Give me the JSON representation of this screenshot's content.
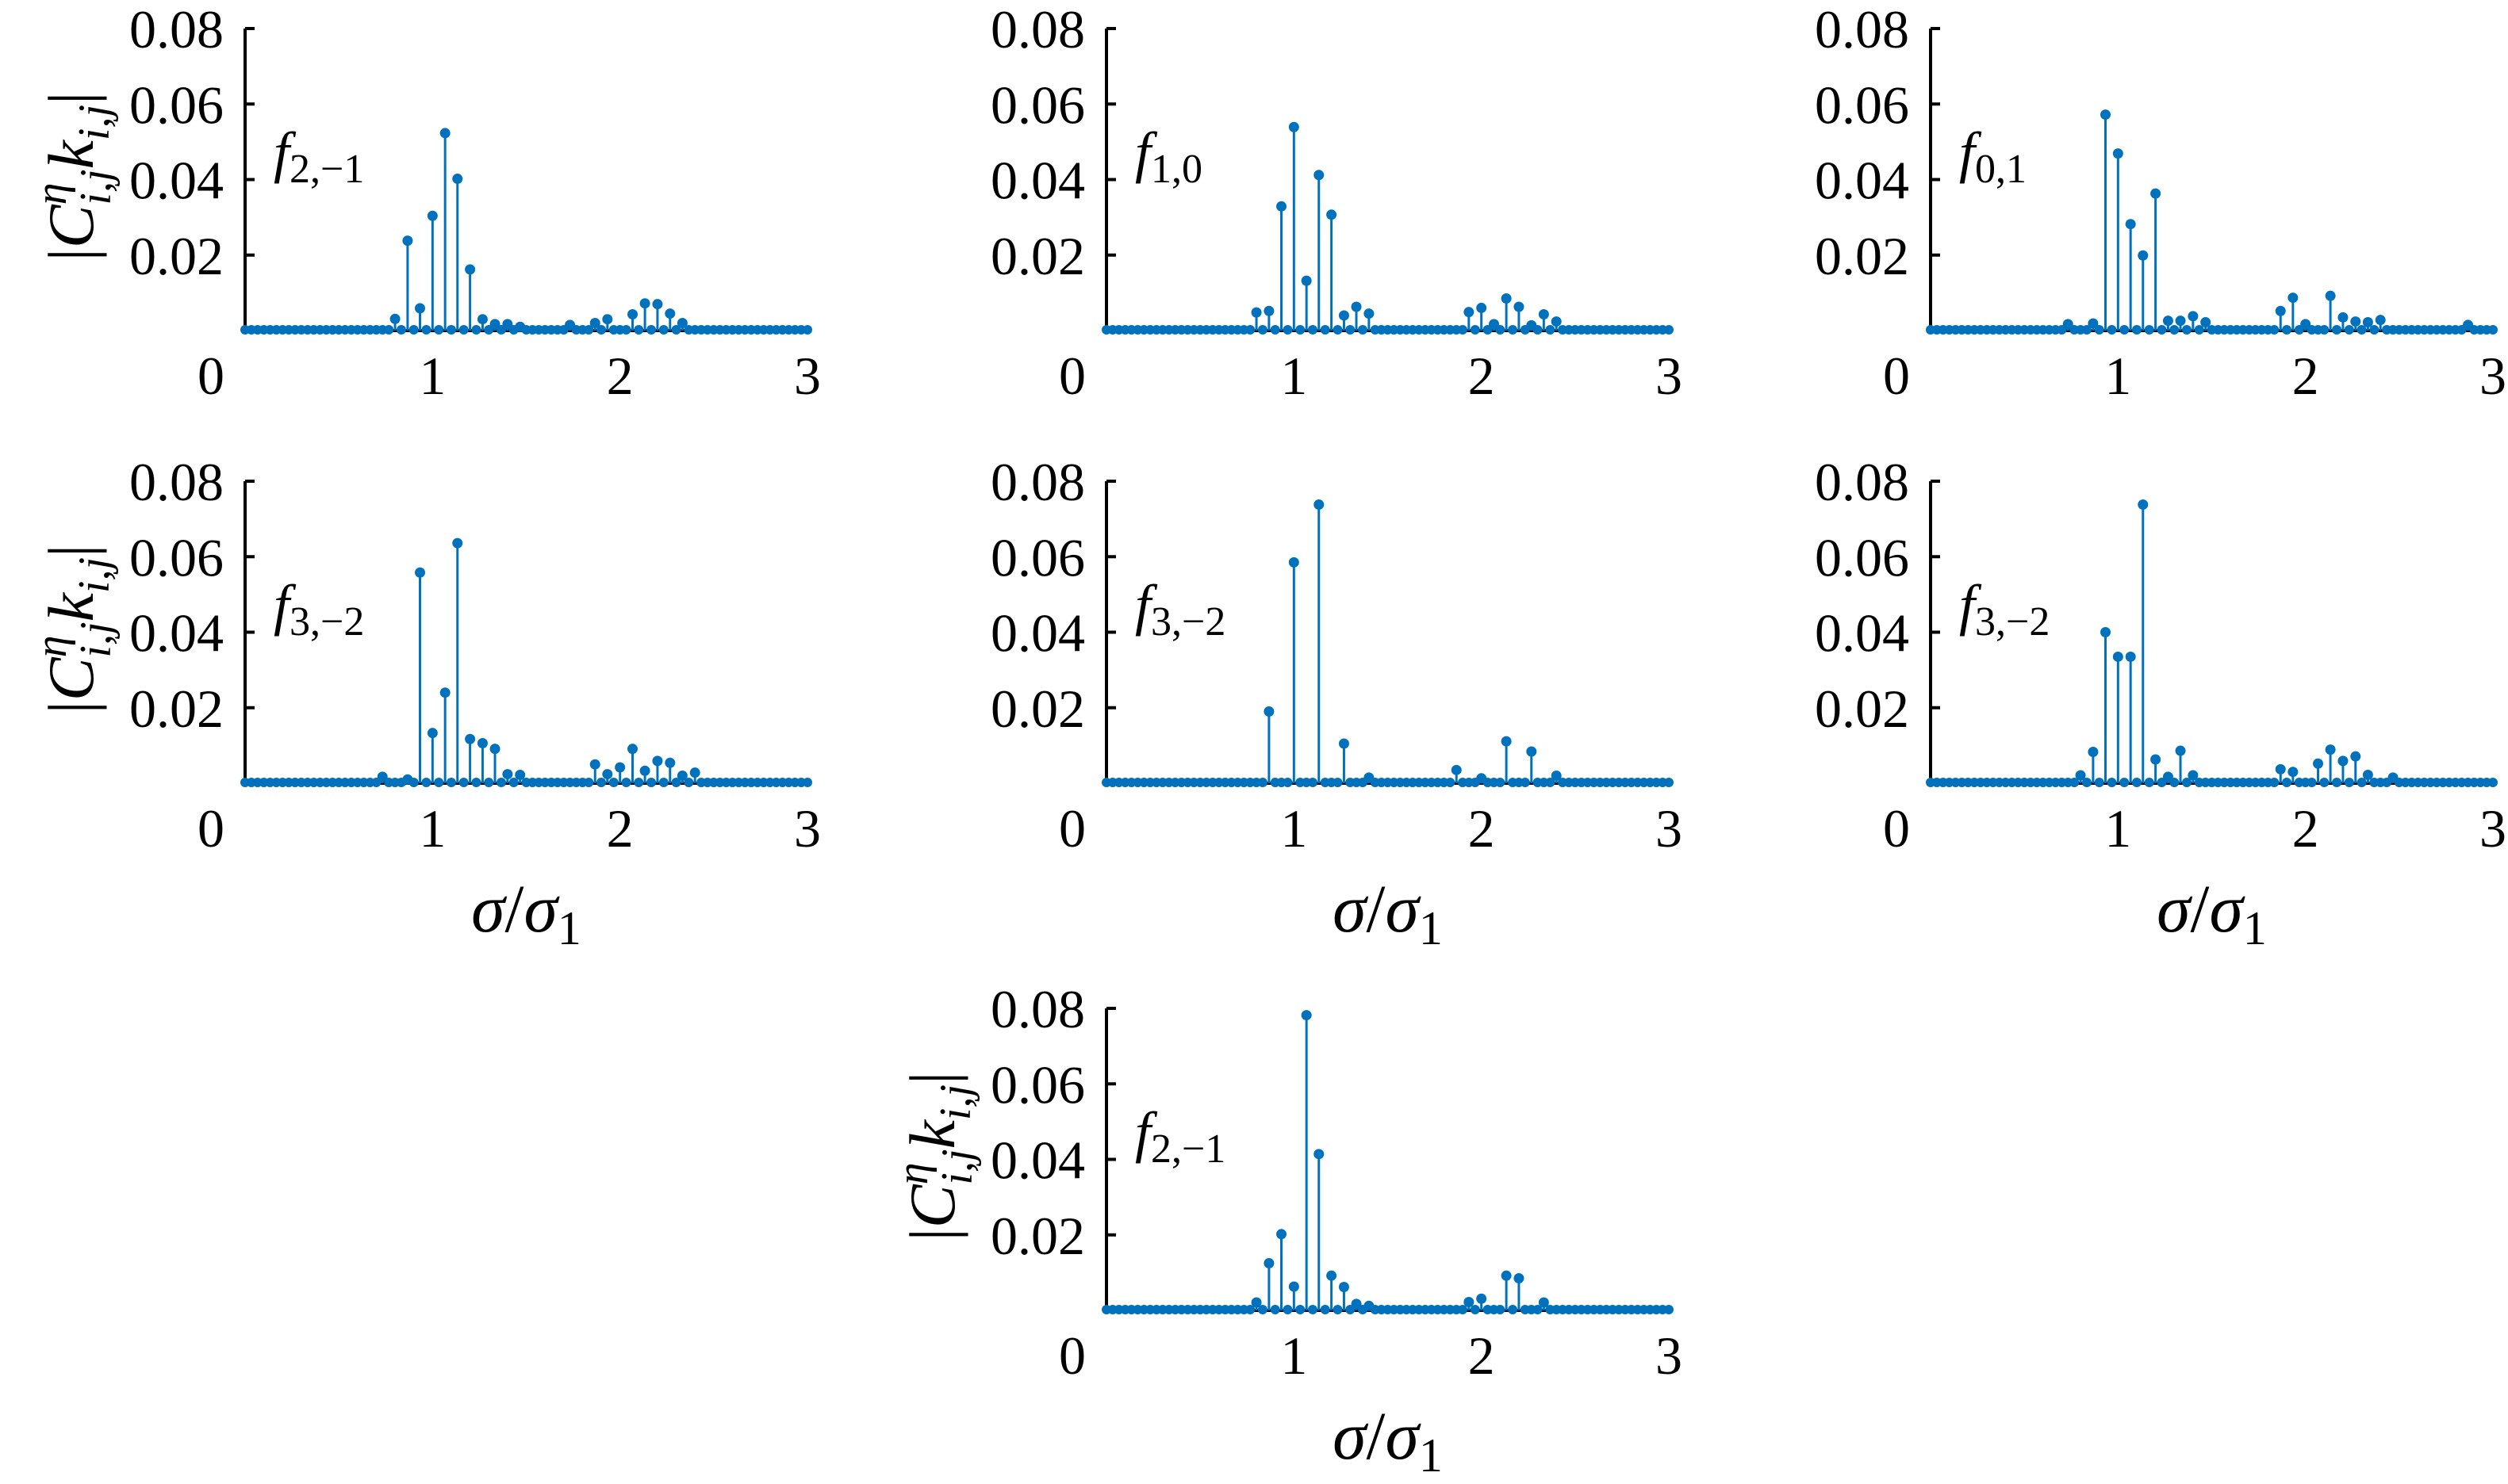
{
  "chart_data": [
    {
      "type": "stem",
      "label": {
        "main": "f",
        "sub": "2,−1"
      },
      "show_ylabel": true,
      "show_xlabel": false,
      "xlim": [
        0,
        3
      ],
      "ylim": [
        0,
        0.08
      ],
      "stems": [
        [
          0.8,
          0.0031
        ],
        [
          0.867,
          0.0238
        ],
        [
          0.933,
          0.0059
        ],
        [
          1.0,
          0.0304
        ],
        [
          1.067,
          0.0523
        ],
        [
          1.133,
          0.0402
        ],
        [
          1.2,
          0.0162
        ],
        [
          1.267,
          0.003
        ],
        [
          1.333,
          0.0017
        ],
        [
          1.4,
          0.0017
        ],
        [
          1.467,
          0.001
        ],
        [
          1.733,
          0.0015
        ],
        [
          1.867,
          0.002
        ],
        [
          1.933,
          0.003
        ],
        [
          2.067,
          0.0043
        ],
        [
          2.133,
          0.0072
        ],
        [
          2.2,
          0.007
        ],
        [
          2.267,
          0.0045
        ],
        [
          2.333,
          0.002
        ]
      ]
    },
    {
      "type": "stem",
      "label": {
        "main": "f",
        "sub": "1,0"
      },
      "show_ylabel": false,
      "show_xlabel": false,
      "xlim": [
        0,
        3
      ],
      "ylim": [
        0,
        0.08
      ],
      "stems": [
        [
          0.8,
          0.0048
        ],
        [
          0.867,
          0.0052
        ],
        [
          0.933,
          0.0329
        ],
        [
          1.0,
          0.0539
        ],
        [
          1.067,
          0.0132
        ],
        [
          1.133,
          0.0412
        ],
        [
          1.2,
          0.0307
        ],
        [
          1.267,
          0.004
        ],
        [
          1.333,
          0.0063
        ],
        [
          1.4,
          0.0045
        ],
        [
          1.933,
          0.0049
        ],
        [
          2.0,
          0.006
        ],
        [
          2.067,
          0.0017
        ],
        [
          2.133,
          0.0085
        ],
        [
          2.2,
          0.0063
        ],
        [
          2.267,
          0.0014
        ],
        [
          2.333,
          0.0043
        ],
        [
          2.4,
          0.0024
        ]
      ]
    },
    {
      "type": "stem",
      "label": {
        "main": "f",
        "sub": "0,1"
      },
      "show_ylabel": false,
      "show_xlabel": false,
      "xlim": [
        0,
        3
      ],
      "ylim": [
        0,
        0.08
      ],
      "stems": [
        [
          0.733,
          0.0017
        ],
        [
          0.867,
          0.0019
        ],
        [
          0.933,
          0.0572
        ],
        [
          1.0,
          0.0469
        ],
        [
          1.067,
          0.0282
        ],
        [
          1.133,
          0.0199
        ],
        [
          1.2,
          0.0363
        ],
        [
          1.267,
          0.0026
        ],
        [
          1.333,
          0.0026
        ],
        [
          1.4,
          0.0038
        ],
        [
          1.467,
          0.0022
        ],
        [
          1.867,
          0.0052
        ],
        [
          1.933,
          0.0087
        ],
        [
          2.0,
          0.0017
        ],
        [
          2.133,
          0.0092
        ],
        [
          2.2,
          0.0035
        ],
        [
          2.267,
          0.0024
        ],
        [
          2.333,
          0.0022
        ],
        [
          2.4,
          0.0028
        ],
        [
          2.867,
          0.0015
        ]
      ]
    },
    {
      "type": "stem",
      "label": {
        "main": "f",
        "sub": "3,−2"
      },
      "show_ylabel": true,
      "show_xlabel": true,
      "xlim": [
        0,
        3
      ],
      "ylim": [
        0,
        0.08
      ],
      "stems": [
        [
          0.733,
          0.0017
        ],
        [
          0.867,
          0.001
        ],
        [
          0.933,
          0.0558
        ],
        [
          1.0,
          0.0133
        ],
        [
          1.067,
          0.024
        ],
        [
          1.133,
          0.0636
        ],
        [
          1.2,
          0.0117
        ],
        [
          1.267,
          0.0106
        ],
        [
          1.333,
          0.0091
        ],
        [
          1.4,
          0.0024
        ],
        [
          1.467,
          0.0022
        ],
        [
          1.867,
          0.005
        ],
        [
          1.933,
          0.0024
        ],
        [
          2.0,
          0.0042
        ],
        [
          2.067,
          0.0091
        ],
        [
          2.133,
          0.0033
        ],
        [
          2.2,
          0.0059
        ],
        [
          2.267,
          0.0054
        ],
        [
          2.333,
          0.002
        ],
        [
          2.4,
          0.0028
        ]
      ]
    },
    {
      "type": "stem",
      "label": {
        "main": "f",
        "sub": "3,−2"
      },
      "show_ylabel": false,
      "show_xlabel": true,
      "xlim": [
        0,
        3
      ],
      "ylim": [
        0,
        0.08
      ],
      "stems": [
        [
          0.867,
          0.019
        ],
        [
          1.0,
          0.0585
        ],
        [
          1.133,
          0.0738
        ],
        [
          1.267,
          0.0105
        ],
        [
          1.4,
          0.0015
        ],
        [
          1.867,
          0.0035
        ],
        [
          2.0,
          0.0013
        ],
        [
          2.133,
          0.0111
        ],
        [
          2.267,
          0.0084
        ],
        [
          2.4,
          0.002
        ]
      ]
    },
    {
      "type": "stem",
      "label": {
        "main": "f",
        "sub": "3,−2"
      },
      "show_ylabel": false,
      "show_xlabel": true,
      "xlim": [
        0,
        3
      ],
      "ylim": [
        0,
        0.08
      ],
      "stems": [
        [
          0.8,
          0.0021
        ],
        [
          0.867,
          0.0083
        ],
        [
          0.933,
          0.04
        ],
        [
          1.0,
          0.0335
        ],
        [
          1.067,
          0.0335
        ],
        [
          1.133,
          0.0738
        ],
        [
          1.2,
          0.0063
        ],
        [
          1.267,
          0.0017
        ],
        [
          1.333,
          0.0086
        ],
        [
          1.4,
          0.0021
        ],
        [
          1.867,
          0.0037
        ],
        [
          1.933,
          0.003
        ],
        [
          2.067,
          0.0052
        ],
        [
          2.133,
          0.0089
        ],
        [
          2.2,
          0.0059
        ],
        [
          2.267,
          0.0071
        ],
        [
          2.333,
          0.0022
        ],
        [
          2.467,
          0.0015
        ]
      ]
    },
    {
      "type": "stem",
      "label": {
        "main": "f",
        "sub": "2,−1"
      },
      "show_ylabel": true,
      "show_xlabel": true,
      "xlim": [
        0,
        3
      ],
      "ylim": [
        0,
        0.08
      ],
      "stems": [
        [
          0.8,
          0.0021
        ],
        [
          0.867,
          0.0125
        ],
        [
          0.933,
          0.0202
        ],
        [
          1.0,
          0.0063
        ],
        [
          1.067,
          0.0782
        ],
        [
          1.133,
          0.0414
        ],
        [
          1.2,
          0.0092
        ],
        [
          1.267,
          0.0062
        ],
        [
          1.333,
          0.0017
        ],
        [
          1.4,
          0.0012
        ],
        [
          1.933,
          0.0022
        ],
        [
          2.0,
          0.0031
        ],
        [
          2.133,
          0.0092
        ],
        [
          2.2,
          0.0085
        ],
        [
          2.333,
          0.0021
        ]
      ]
    }
  ],
  "axes": {
    "yticks": [
      "0.02",
      "0.04",
      "0.06",
      "0.08"
    ],
    "ytick_values": [
      0.02,
      0.04,
      0.06,
      0.08
    ],
    "xticks": [
      "1",
      "2",
      "3"
    ],
    "xtick_values": [
      1,
      2,
      3
    ],
    "origin_label": "0",
    "xlabel": {
      "num": "σ",
      "slash": "/",
      "den": "σ",
      "den_sub": "1"
    },
    "ylabel": {
      "open": "|",
      "C": "C",
      "sup": "η",
      "sub1": "i,j",
      "k": "k",
      "sub2": "i,j",
      "close": "|"
    }
  },
  "colors": {
    "stem": "#0072bd",
    "axis": "#000000"
  }
}
